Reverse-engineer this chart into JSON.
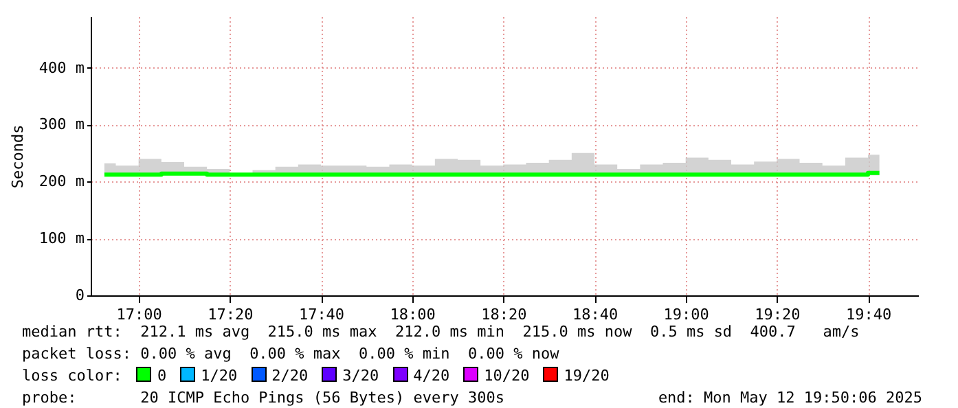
{
  "chart_data": {
    "type": "step",
    "ylabel": "Seconds",
    "x": [
      16.875,
      16.9583,
      17.0417,
      17.125,
      17.2083,
      17.2917,
      17.375,
      17.4583,
      17.5417,
      17.625,
      17.7083,
      17.7917,
      17.875,
      17.9583,
      18.0417,
      18.125,
      18.2083,
      18.2917,
      18.375,
      18.4583,
      18.5417,
      18.625,
      18.7083,
      18.7917,
      18.875,
      18.9583,
      19.0417,
      19.125,
      19.2083,
      19.2917,
      19.375,
      19.4583,
      19.5417,
      19.625,
      19.7083
    ],
    "series": [
      {
        "name": "0",
        "color": "#00ff00",
        "values": [
          212,
          212,
          212,
          214,
          214,
          212,
          212,
          212,
          212,
          212,
          212,
          212,
          212,
          212,
          212,
          212,
          212,
          212,
          212,
          212,
          212,
          212,
          212,
          212,
          212,
          212,
          212,
          212,
          212,
          212,
          212,
          212,
          212,
          212,
          215
        ],
        "lower": [
          211,
          211,
          211,
          211,
          211,
          211,
          211,
          211,
          211,
          211,
          211,
          211,
          211,
          211,
          211,
          211,
          211,
          211,
          211,
          211,
          211,
          211,
          211,
          211,
          211,
          211,
          211,
          211,
          211,
          211,
          211,
          211,
          211,
          211,
          211
        ],
        "upper": [
          232,
          228,
          240,
          234,
          226,
          222,
          213,
          220,
          226,
          230,
          228,
          228,
          226,
          230,
          228,
          240,
          238,
          228,
          230,
          233,
          238,
          250,
          230,
          222,
          230,
          233,
          242,
          238,
          230,
          235,
          240,
          233,
          228,
          242,
          247
        ]
      },
      {
        "name": "1/20",
        "color": "#00b8ff",
        "values": [
          null,
          null,
          null,
          null,
          null,
          null,
          null,
          null,
          null,
          null,
          null,
          null,
          null,
          null,
          null,
          null,
          null,
          null,
          null,
          null,
          null,
          null,
          null,
          null,
          null,
          null,
          null,
          null,
          null,
          null,
          null,
          null,
          null,
          null,
          null
        ]
      },
      {
        "name": "2/20",
        "color": "#0059ff",
        "values": [
          null,
          null,
          null,
          null,
          null,
          null,
          null,
          null,
          null,
          null,
          null,
          null,
          null,
          null,
          null,
          null,
          null,
          null,
          null,
          null,
          null,
          null,
          null,
          null,
          null,
          null,
          null,
          null,
          null,
          null,
          null,
          null,
          null,
          null,
          null
        ]
      },
      {
        "name": "3/20",
        "color": "#5e00ff",
        "values": [
          null,
          null,
          null,
          null,
          null,
          null,
          null,
          null,
          null,
          null,
          null,
          null,
          null,
          null,
          null,
          null,
          null,
          null,
          null,
          null,
          null,
          null,
          null,
          null,
          null,
          null,
          null,
          null,
          null,
          null,
          null,
          null,
          null,
          null,
          null
        ]
      },
      {
        "name": "4/20",
        "color": "#7e00ff",
        "values": [
          null,
          null,
          null,
          null,
          null,
          null,
          null,
          null,
          null,
          null,
          null,
          null,
          null,
          null,
          null,
          null,
          null,
          null,
          null,
          null,
          null,
          null,
          null,
          null,
          null,
          null,
          null,
          null,
          null,
          null,
          null,
          null,
          null,
          null,
          null
        ]
      },
      {
        "name": "10/20",
        "color": "#dd00ff",
        "values": [
          null,
          null,
          null,
          null,
          null,
          null,
          null,
          null,
          null,
          null,
          null,
          null,
          null,
          null,
          null,
          null,
          null,
          null,
          null,
          null,
          null,
          null,
          null,
          null,
          null,
          null,
          null,
          null,
          null,
          null,
          null,
          null,
          null,
          null,
          null
        ]
      },
      {
        "name": "19/20",
        "color": "#ff0000",
        "values": [
          null,
          null,
          null,
          null,
          null,
          null,
          null,
          null,
          null,
          null,
          null,
          null,
          null,
          null,
          null,
          null,
          null,
          null,
          null,
          null,
          null,
          null,
          null,
          null,
          null,
          null,
          null,
          null,
          null,
          null,
          null,
          null,
          null,
          null,
          null
        ]
      }
    ],
    "legend_title": "loss color:",
    "legend": "bottom",
    "xlim": [
      16.825,
      19.85
    ],
    "xticks": [
      {
        "value": 17,
        "label": "17:00"
      },
      {
        "value": 17.3333,
        "label": "17:20"
      },
      {
        "value": 17.6667,
        "label": "17:40"
      },
      {
        "value": 18,
        "label": "18:00"
      },
      {
        "value": 18.3333,
        "label": "18:20"
      },
      {
        "value": 18.6667,
        "label": "18:40"
      },
      {
        "value": 19,
        "label": "19:00"
      },
      {
        "value": 19.3333,
        "label": "19:20"
      },
      {
        "value": 19.6667,
        "label": "19:40"
      }
    ],
    "ylim": [
      0,
      490
    ],
    "yticks": [
      0,
      {
        "value": 100,
        "label": "100 m"
      },
      {
        "value": 200,
        "label": "200 m"
      },
      {
        "value": 300,
        "label": "300 m"
      },
      {
        "value": 400,
        "label": "400 m"
      }
    ],
    "grid": true,
    "annotations": [
      "median rtt:  212.1 ms avg  215.0 ms max  212.0 ms min  215.0 ms now  0.5 ms sd  400.7   am/s",
      "packet loss: 0.00 % avg  0.00 % max  0.00 % min  0.00 % now",
      "probe:       20 ICMP Echo Pings (56 Bytes) every 300s",
      "end: Mon May 12 19:50:06 2025"
    ]
  }
}
